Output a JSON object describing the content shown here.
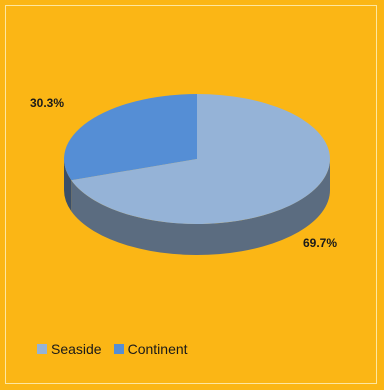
{
  "chart_data": {
    "type": "pie",
    "style": "3d",
    "slices": [
      {
        "name": "Seaside",
        "value": 69.7,
        "label": "69.7%",
        "color": "#95b3d7",
        "side_color": "#5b6c80"
      },
      {
        "name": "Continent",
        "value": 30.3,
        "label": "30.3%",
        "color": "#558ed5",
        "side_color": "#3b4f68"
      }
    ],
    "legend_position": "bottom-left",
    "background_color": "#fbb615"
  }
}
